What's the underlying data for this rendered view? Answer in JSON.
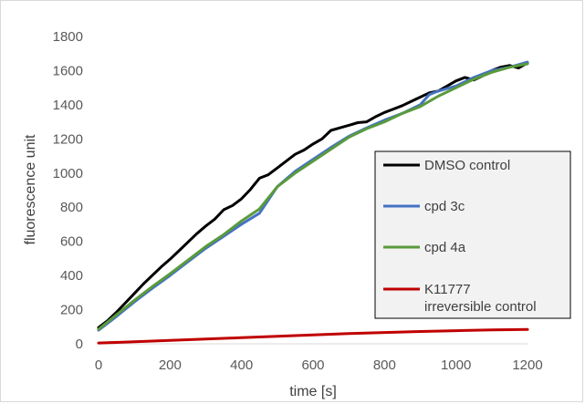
{
  "chart_data": {
    "type": "line",
    "xlabel": "time [s]",
    "ylabel": "fluorescence unit",
    "xlim": [
      0,
      1200
    ],
    "ylim": [
      0,
      1800
    ],
    "x_ticks": [
      0,
      200,
      400,
      600,
      800,
      1000,
      1200
    ],
    "y_ticks": [
      0,
      200,
      400,
      600,
      800,
      1000,
      1200,
      1400,
      1600,
      1800
    ],
    "grid": false,
    "legend_placement": "right",
    "series": [
      {
        "name": "DMSO control",
        "color": "#000000",
        "x": [
          0,
          25,
          50,
          75,
          100,
          125,
          150,
          175,
          200,
          225,
          250,
          275,
          300,
          325,
          350,
          375,
          400,
          425,
          450,
          475,
          500,
          525,
          550,
          575,
          600,
          625,
          650,
          675,
          700,
          725,
          750,
          775,
          800,
          825,
          850,
          875,
          900,
          925,
          950,
          975,
          1000,
          1025,
          1050,
          1075,
          1100,
          1125,
          1150,
          1175,
          1200
        ],
        "y": [
          95,
          135,
          185,
          240,
          295,
          350,
          400,
          450,
          495,
          545,
          595,
          645,
          690,
          730,
          785,
          810,
          850,
          905,
          970,
          990,
          1030,
          1070,
          1110,
          1135,
          1170,
          1200,
          1250,
          1265,
          1280,
          1295,
          1300,
          1330,
          1355,
          1375,
          1395,
          1420,
          1445,
          1470,
          1480,
          1510,
          1540,
          1560,
          1545,
          1570,
          1600,
          1620,
          1630,
          1615,
          1645
        ]
      },
      {
        "name": "cpd 3c",
        "color": "#4472c4",
        "x": [
          0,
          50,
          100,
          150,
          200,
          250,
          300,
          350,
          400,
          450,
          500,
          550,
          600,
          650,
          700,
          750,
          800,
          850,
          900,
          925,
          950,
          1000,
          1050,
          1100,
          1150,
          1200
        ],
        "y": [
          80,
          160,
          245,
          325,
          400,
          480,
          560,
          630,
          700,
          765,
          920,
          1010,
          1080,
          1150,
          1215,
          1265,
          1310,
          1350,
          1400,
          1460,
          1480,
          1510,
          1560,
          1600,
          1620,
          1650
        ]
      },
      {
        "name": "cpd 4a",
        "color": "#5a9a3c",
        "x": [
          0,
          50,
          100,
          150,
          200,
          250,
          300,
          350,
          400,
          450,
          500,
          550,
          600,
          650,
          700,
          750,
          800,
          850,
          900,
          950,
          1000,
          1050,
          1100,
          1150,
          1200
        ],
        "y": [
          85,
          170,
          255,
          335,
          410,
          490,
          570,
          640,
          720,
          790,
          920,
          1000,
          1070,
          1140,
          1210,
          1260,
          1300,
          1350,
          1390,
          1450,
          1500,
          1550,
          1590,
          1620,
          1640
        ]
      },
      {
        "name": "K11777 irreversible control",
        "color": "#c00000",
        "x": [
          0,
          100,
          200,
          300,
          400,
          500,
          600,
          700,
          800,
          900,
          1000,
          1100,
          1200
        ],
        "y": [
          5,
          12,
          20,
          28,
          36,
          44,
          52,
          60,
          66,
          72,
          77,
          81,
          84
        ]
      }
    ]
  }
}
